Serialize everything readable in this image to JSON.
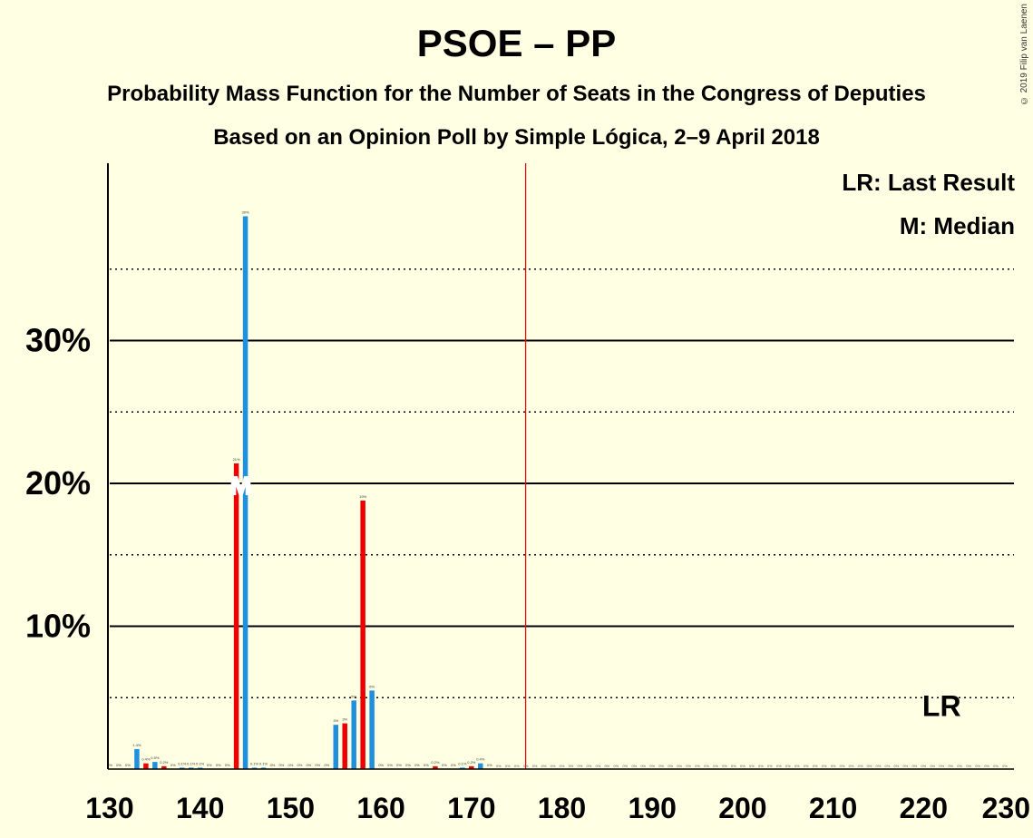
{
  "header": {
    "title": "PSOE – PP",
    "subtitle": "Probability Mass Function for the Number of Seats in the Congress of Deputies",
    "source": "Based on an Opinion Poll by Simple Lógica, 2–9 April 2018"
  },
  "copyright": "© 2019 Filip van Laenen",
  "legend": {
    "last_result": "LR: Last Result",
    "median": "M: Median"
  },
  "colors": {
    "background": "#FFFFE3",
    "bar_blue": "#1E90DD",
    "bar_red": "#EE0000",
    "majority_line": "#EE0000"
  },
  "chart_data": {
    "type": "bar",
    "x_ticks": [
      130,
      140,
      150,
      160,
      170,
      180,
      190,
      200,
      210,
      220,
      230
    ],
    "y_ticks": [
      0.1,
      0.2,
      0.3
    ],
    "y_tick_labels": [
      "10%",
      "20%",
      "30%"
    ],
    "xlim": [
      130,
      230
    ],
    "ylim": [
      0,
      0.42
    ],
    "majority": 176,
    "median": 145,
    "median_label": "M",
    "last_result": 222,
    "last_result_label": "LR",
    "series": [
      {
        "color": "#1E90DD",
        "points": [
          {
            "x": 130,
            "y": 0,
            "label": "0%"
          },
          {
            "x": 132,
            "y": 0,
            "label": "0%"
          },
          {
            "x": 133,
            "y": 0.014,
            "label": "1.4%"
          },
          {
            "x": 135,
            "y": 0.005,
            "label": "0.5%"
          },
          {
            "x": 137,
            "y": 0,
            "label": "0%"
          },
          {
            "x": 138,
            "y": 0.001,
            "label": "0.1%"
          },
          {
            "x": 139,
            "y": 0.001,
            "label": "0.1%"
          },
          {
            "x": 140,
            "y": 0.001,
            "label": "0.1%"
          },
          {
            "x": 141,
            "y": 0,
            "label": "0%"
          },
          {
            "x": 142,
            "y": 0,
            "label": "0%"
          },
          {
            "x": 143,
            "y": 0,
            "label": "0%"
          },
          {
            "x": 145,
            "y": 0.387,
            "label": "39%"
          },
          {
            "x": 146,
            "y": 0.001,
            "label": "0.1%"
          },
          {
            "x": 147,
            "y": 0.001,
            "label": "0.1%"
          },
          {
            "x": 148,
            "y": 0,
            "label": "0%"
          },
          {
            "x": 149,
            "y": 0,
            "label": "0%"
          },
          {
            "x": 150,
            "y": 0,
            "label": "0%"
          },
          {
            "x": 151,
            "y": 0,
            "label": "0%"
          },
          {
            "x": 152,
            "y": 0,
            "label": "0%"
          },
          {
            "x": 153,
            "y": 0,
            "label": "0%"
          },
          {
            "x": 154,
            "y": 0,
            "label": "0%"
          },
          {
            "x": 155,
            "y": 0.031,
            "label": "3%"
          },
          {
            "x": 157,
            "y": 0.048,
            "label": "5%"
          },
          {
            "x": 159,
            "y": 0.055,
            "label": "6%"
          },
          {
            "x": 160,
            "y": 0,
            "label": "0%"
          },
          {
            "x": 161,
            "y": 0,
            "label": "0%"
          },
          {
            "x": 162,
            "y": 0,
            "label": "0%"
          },
          {
            "x": 163,
            "y": 0,
            "label": "0%"
          },
          {
            "x": 164,
            "y": 0,
            "label": "0%"
          },
          {
            "x": 165,
            "y": 0,
            "label": "0%"
          },
          {
            "x": 167,
            "y": 0,
            "label": "0%"
          },
          {
            "x": 168,
            "y": 0,
            "label": "0%"
          },
          {
            "x": 169,
            "y": 0.001,
            "label": "0.1%"
          },
          {
            "x": 171,
            "y": 0.004,
            "label": "0.4%"
          },
          {
            "x": 172,
            "y": 0,
            "label": "0%"
          }
        ]
      },
      {
        "color": "#EE0000",
        "points": [
          {
            "x": 131,
            "y": 0,
            "label": "0%"
          },
          {
            "x": 134,
            "y": 0.004,
            "label": "0.4%"
          },
          {
            "x": 136,
            "y": 0.002,
            "label": "0.2%"
          },
          {
            "x": 144,
            "y": 0.214,
            "label": "21%"
          },
          {
            "x": 156,
            "y": 0.032,
            "label": "3%"
          },
          {
            "x": 158,
            "y": 0.188,
            "label": "19%"
          },
          {
            "x": 166,
            "y": 0.002,
            "label": "0.2%"
          },
          {
            "x": 170,
            "y": 0.002,
            "label": "0.2%"
          }
        ]
      }
    ],
    "zero_range": [
      173,
      229
    ],
    "zero_label": "0%"
  }
}
